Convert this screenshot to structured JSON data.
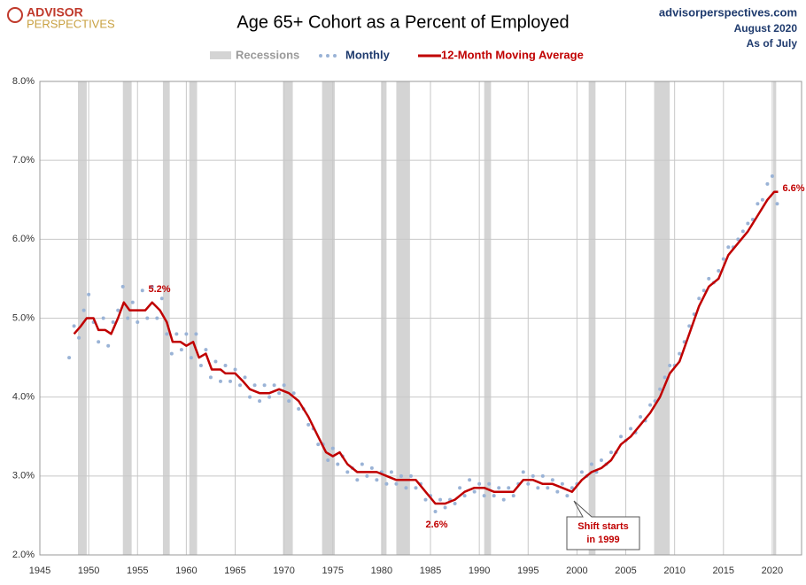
{
  "chart_data": {
    "type": "line",
    "brand": [
      "ADVISOR",
      "PERSPECTIVES"
    ],
    "title": "Age 65+ Cohort as a Percent of Employed",
    "source": [
      "advisorperspectives.com",
      "August 2020",
      "As of July"
    ],
    "recessions_label": "Recessions",
    "recession_color": "#d4d4d4",
    "recessions": [
      [
        1948.9,
        1949.8
      ],
      [
        1953.5,
        1954.4
      ],
      [
        1957.6,
        1958.3
      ],
      [
        1960.3,
        1961.1
      ],
      [
        1969.9,
        1970.9
      ],
      [
        1973.9,
        1975.2
      ],
      [
        1980.0,
        1980.5
      ],
      [
        1981.5,
        1982.9
      ],
      [
        1990.5,
        1991.2
      ],
      [
        2001.2,
        2001.9
      ],
      [
        2007.9,
        2009.5
      ],
      [
        2020.1,
        2020.4
      ]
    ],
    "series": [
      {
        "name": "Monthly",
        "color": "#9ab3d6",
        "style": "dots",
        "x": [
          1948.0,
          1948.5,
          1949.0,
          1949.5,
          1950.0,
          1950.5,
          1951.0,
          1951.5,
          1952.0,
          1952.5,
          1953.0,
          1953.5,
          1954.0,
          1954.5,
          1955.0,
          1955.5,
          1956.0,
          1956.5,
          1957.0,
          1957.5,
          1958.0,
          1958.5,
          1959.0,
          1959.5,
          1960.0,
          1960.5,
          1961.0,
          1961.5,
          1962.0,
          1962.5,
          1963.0,
          1963.5,
          1964.0,
          1964.5,
          1965.0,
          1965.5,
          1966.0,
          1966.5,
          1967.0,
          1967.5,
          1968.0,
          1968.5,
          1969.0,
          1969.5,
          1970.0,
          1970.5,
          1971.0,
          1971.5,
          1972.0,
          1972.5,
          1973.0,
          1973.5,
          1974.0,
          1974.5,
          1975.0,
          1975.5,
          1976.0,
          1976.5,
          1977.0,
          1977.5,
          1978.0,
          1978.5,
          1979.0,
          1979.5,
          1980.0,
          1980.5,
          1981.0,
          1981.5,
          1982.0,
          1982.5,
          1983.0,
          1983.5,
          1984.0,
          1984.5,
          1985.0,
          1985.5,
          1986.0,
          1986.5,
          1987.0,
          1987.5,
          1988.0,
          1988.5,
          1989.0,
          1989.5,
          1990.0,
          1990.5,
          1991.0,
          1991.5,
          1992.0,
          1992.5,
          1993.0,
          1993.5,
          1994.0,
          1994.5,
          1995.0,
          1995.5,
          1996.0,
          1996.5,
          1997.0,
          1997.5,
          1998.0,
          1998.5,
          1999.0,
          1999.5,
          2000.0,
          2000.5,
          2001.0,
          2001.5,
          2002.0,
          2002.5,
          2003.0,
          2003.5,
          2004.0,
          2004.5,
          2005.0,
          2005.5,
          2006.0,
          2006.5,
          2007.0,
          2007.5,
          2008.0,
          2008.5,
          2009.0,
          2009.5,
          2010.0,
          2010.5,
          2011.0,
          2011.5,
          2012.0,
          2012.5,
          2013.0,
          2013.5,
          2014.0,
          2014.5,
          2015.0,
          2015.5,
          2016.0,
          2016.5,
          2017.0,
          2017.5,
          2018.0,
          2018.5,
          2019.0,
          2019.5,
          2020.0,
          2020.5
        ],
        "values": [
          4.5,
          4.9,
          4.75,
          5.1,
          5.3,
          4.95,
          4.7,
          5.0,
          4.65,
          4.95,
          5.1,
          5.4,
          5.0,
          5.2,
          4.95,
          5.35,
          5.0,
          5.4,
          5.0,
          5.25,
          4.8,
          4.55,
          4.8,
          4.6,
          4.8,
          4.5,
          4.8,
          4.4,
          4.6,
          4.25,
          4.45,
          4.2,
          4.4,
          4.2,
          4.35,
          4.15,
          4.25,
          4.0,
          4.15,
          3.95,
          4.15,
          4.0,
          4.15,
          4.05,
          4.15,
          3.95,
          4.05,
          3.85,
          3.85,
          3.65,
          3.6,
          3.4,
          3.4,
          3.2,
          3.35,
          3.15,
          3.25,
          3.05,
          3.1,
          2.95,
          3.15,
          3.0,
          3.1,
          2.95,
          3.05,
          2.9,
          3.05,
          2.9,
          3.0,
          2.85,
          3.0,
          2.85,
          2.9,
          2.7,
          2.75,
          2.55,
          2.7,
          2.6,
          2.7,
          2.65,
          2.85,
          2.75,
          2.95,
          2.8,
          2.9,
          2.75,
          2.9,
          2.75,
          2.85,
          2.7,
          2.85,
          2.75,
          2.9,
          3.05,
          2.9,
          3.0,
          2.85,
          3.0,
          2.85,
          2.95,
          2.8,
          2.9,
          2.75,
          2.85,
          2.9,
          3.05,
          3.0,
          3.15,
          3.05,
          3.2,
          3.15,
          3.3,
          3.3,
          3.5,
          3.45,
          3.6,
          3.55,
          3.75,
          3.7,
          3.9,
          3.95,
          4.1,
          4.25,
          4.4,
          4.4,
          4.55,
          4.7,
          4.9,
          5.05,
          5.25,
          5.35,
          5.5,
          5.45,
          5.6,
          5.75,
          5.9,
          5.9,
          6.0,
          6.1,
          6.2,
          6.25,
          6.45,
          6.5,
          6.7,
          6.8,
          6.45
        ]
      },
      {
        "name": "12-Month Moving Average",
        "color": "#c00000",
        "style": "line",
        "x": [
          1948.5,
          1949.2,
          1949.8,
          1950.5,
          1951.0,
          1951.7,
          1952.3,
          1953.0,
          1953.6,
          1954.2,
          1955.0,
          1955.8,
          1956.5,
          1957.3,
          1958.0,
          1958.6,
          1959.4,
          1960.0,
          1960.7,
          1961.3,
          1962.0,
          1962.6,
          1963.5,
          1964.0,
          1965.0,
          1965.8,
          1966.5,
          1967.5,
          1968.5,
          1969.5,
          1970.5,
          1971.5,
          1972.5,
          1973.5,
          1974.3,
          1975.0,
          1975.7,
          1976.5,
          1977.5,
          1978.5,
          1979.5,
          1980.5,
          1981.5,
          1982.5,
          1983.5,
          1984.5,
          1985.5,
          1986.5,
          1987.5,
          1988.5,
          1989.5,
          1990.5,
          1991.5,
          1992.5,
          1993.5,
          1994.5,
          1995.5,
          1996.5,
          1997.5,
          1998.5,
          1999.5,
          2000.5,
          2001.5,
          2002.5,
          2003.5,
          2004.5,
          2005.5,
          2006.5,
          2007.5,
          2008.5,
          2009.5,
          2010.5,
          2011.5,
          2012.5,
          2013.5,
          2014.5,
          2015.5,
          2016.5,
          2017.5,
          2018.5,
          2019.5,
          2020.2,
          2020.6
        ],
        "values": [
          4.8,
          4.9,
          5.0,
          5.0,
          4.85,
          4.85,
          4.8,
          5.0,
          5.2,
          5.1,
          5.1,
          5.1,
          5.2,
          5.1,
          4.95,
          4.7,
          4.7,
          4.65,
          4.7,
          4.5,
          4.55,
          4.35,
          4.35,
          4.3,
          4.3,
          4.2,
          4.1,
          4.05,
          4.05,
          4.1,
          4.05,
          3.95,
          3.75,
          3.5,
          3.3,
          3.25,
          3.3,
          3.15,
          3.05,
          3.05,
          3.05,
          3.0,
          2.95,
          2.95,
          2.95,
          2.8,
          2.65,
          2.65,
          2.7,
          2.8,
          2.85,
          2.85,
          2.8,
          2.8,
          2.8,
          2.95,
          2.95,
          2.9,
          2.9,
          2.85,
          2.8,
          2.95,
          3.05,
          3.1,
          3.2,
          3.4,
          3.5,
          3.65,
          3.8,
          4.0,
          4.3,
          4.45,
          4.8,
          5.15,
          5.4,
          5.5,
          5.8,
          5.95,
          6.1,
          6.3,
          6.5,
          6.6,
          6.6
        ]
      }
    ],
    "annotations": [
      "5.2%",
      "2.6%",
      "6.6%"
    ],
    "callout": [
      "Shift starts",
      "in 1999"
    ],
    "xlim": [
      1945,
      2023
    ],
    "xticks": [
      1945,
      1950,
      1955,
      1960,
      1965,
      1970,
      1975,
      1980,
      1985,
      1990,
      1995,
      2000,
      2005,
      2010,
      2015,
      2020
    ],
    "ylim": [
      2,
      8
    ],
    "yticks": [
      {
        "value": 2,
        "label": "2.0%"
      },
      {
        "value": 3,
        "label": "3.0%"
      },
      {
        "value": 4,
        "label": "4.0%"
      },
      {
        "value": 5,
        "label": "5.0%"
      },
      {
        "value": 6,
        "label": "6.0%"
      },
      {
        "value": 7,
        "label": "7.0%"
      },
      {
        "value": 8,
        "label": "8.0%"
      }
    ],
    "grid": true
  }
}
